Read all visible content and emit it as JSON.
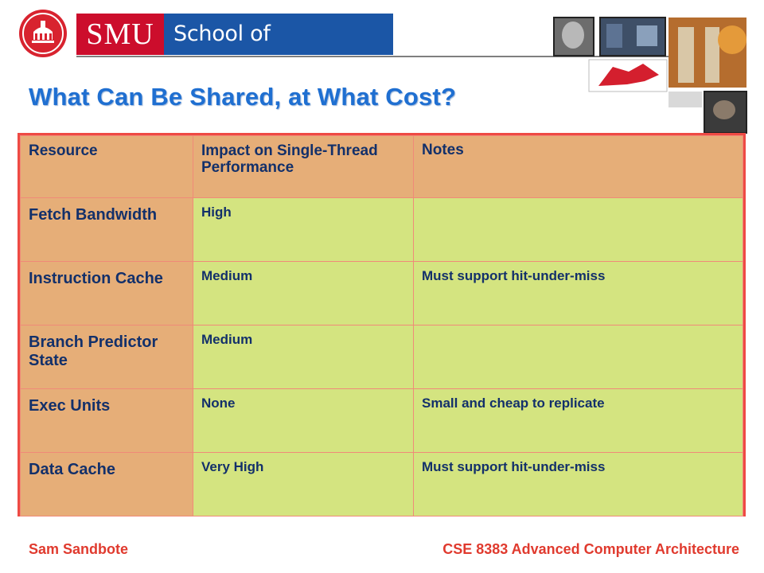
{
  "header": {
    "brand": "SMU",
    "school": "School of Engineering"
  },
  "title": "What Can Be Shared, at What Cost?",
  "table": {
    "columns": [
      "Resource",
      "Impact on Single-Thread Performance",
      "Notes"
    ],
    "rows": [
      {
        "resource": "Fetch Bandwidth",
        "impact": "High",
        "notes": ""
      },
      {
        "resource": "Instruction Cache",
        "impact": "Medium",
        "notes": "Must support hit-under-miss"
      },
      {
        "resource": "Branch Predictor State",
        "impact": "Medium",
        "notes": ""
      },
      {
        "resource": "Exec Units",
        "impact": "None",
        "notes": "Small and cheap to replicate"
      },
      {
        "resource": "Data Cache",
        "impact": "Very High",
        "notes": "Must support hit-under-miss"
      }
    ]
  },
  "footer": {
    "author": "Sam Sandbote",
    "course": "CSE 8383 Advanced Computer Architecture"
  },
  "colors": {
    "title": "#1f6fd1",
    "header_cell": "#e6ae78",
    "body_cell": "#d4e480",
    "border": "#ee4a44",
    "footer_text": "#e03a2e",
    "smu_red": "#cc0d2c",
    "smu_blue": "#1b56a6"
  }
}
